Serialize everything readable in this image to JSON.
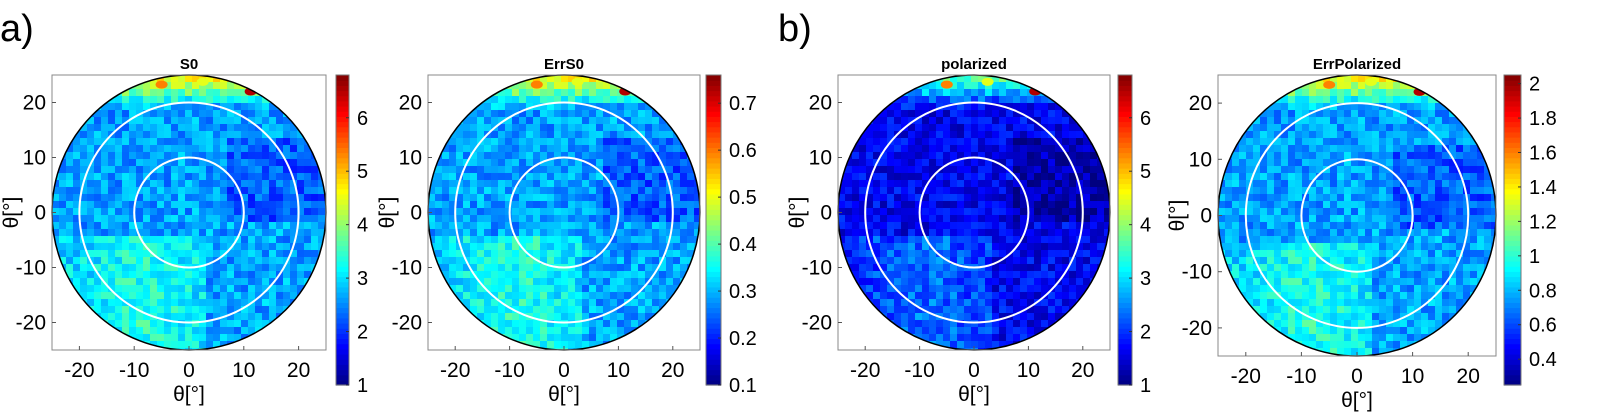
{
  "panel_labels": [
    "a)",
    "b)"
  ],
  "chart_data": [
    {
      "type": "heatmap",
      "title": "S0",
      "xlabel": "θ[°]",
      "ylabel": "θ[°]",
      "xlim": [
        -25,
        25
      ],
      "ylim": [
        -25,
        25
      ],
      "xticks": [
        -20,
        -10,
        0,
        10,
        20
      ],
      "yticks": [
        20,
        10,
        0,
        -10,
        -20
      ],
      "domain_shape": "circle",
      "domain_radius": 25,
      "overlay_circles_radius": [
        10,
        20
      ],
      "colormap": "jet",
      "clim": [
        1,
        6.8
      ],
      "colorbar_ticks": [
        1,
        2,
        3,
        4,
        5,
        6
      ],
      "base_level": 0.35,
      "grid": false
    },
    {
      "type": "heatmap",
      "title": "ErrS0",
      "xlabel": "θ[°]",
      "ylabel": "θ[°]",
      "xlim": [
        -25,
        25
      ],
      "ylim": [
        -25,
        25
      ],
      "xticks": [
        -20,
        -10,
        0,
        10,
        20
      ],
      "yticks": [
        20,
        10,
        0,
        -10,
        -20
      ],
      "domain_shape": "circle",
      "domain_radius": 25,
      "overlay_circles_radius": [
        10,
        20
      ],
      "colormap": "jet",
      "clim": [
        0.1,
        0.76
      ],
      "colorbar_ticks": [
        0.1,
        0.2,
        0.3,
        0.4,
        0.5,
        0.6,
        0.7
      ],
      "base_level": 0.35,
      "grid": false
    },
    {
      "type": "heatmap",
      "title": "polarized",
      "xlabel": "θ[°]",
      "ylabel": "θ[°]",
      "xlim": [
        -25,
        25
      ],
      "ylim": [
        -25,
        25
      ],
      "xticks": [
        -20,
        -10,
        0,
        10,
        20
      ],
      "yticks": [
        20,
        10,
        0,
        -10,
        -20
      ],
      "domain_shape": "circle",
      "domain_radius": 25,
      "overlay_circles_radius": [
        10,
        20
      ],
      "colormap": "jet",
      "clim": [
        1,
        6.8
      ],
      "colorbar_ticks": [
        1,
        2,
        3,
        4,
        5,
        6
      ],
      "base_level": 0.18,
      "grid": false
    },
    {
      "type": "heatmap",
      "title": "ErrPolarized",
      "xlabel": "θ[°]",
      "ylabel": "θ[°]",
      "xlim": [
        -25,
        25
      ],
      "ylim": [
        -25,
        25
      ],
      "xticks": [
        -20,
        -10,
        0,
        10,
        20
      ],
      "yticks": [
        20,
        10,
        0,
        -10,
        -20
      ],
      "domain_shape": "circle",
      "domain_radius": 25,
      "overlay_circles_radius": [
        10,
        20
      ],
      "colormap": "jet",
      "clim": [
        0.25,
        2.05
      ],
      "colorbar_ticks": [
        0.4,
        0.6,
        0.8,
        1,
        1.2,
        1.4,
        1.6,
        1.8,
        2
      ],
      "base_level": 0.35,
      "grid": false
    }
  ]
}
